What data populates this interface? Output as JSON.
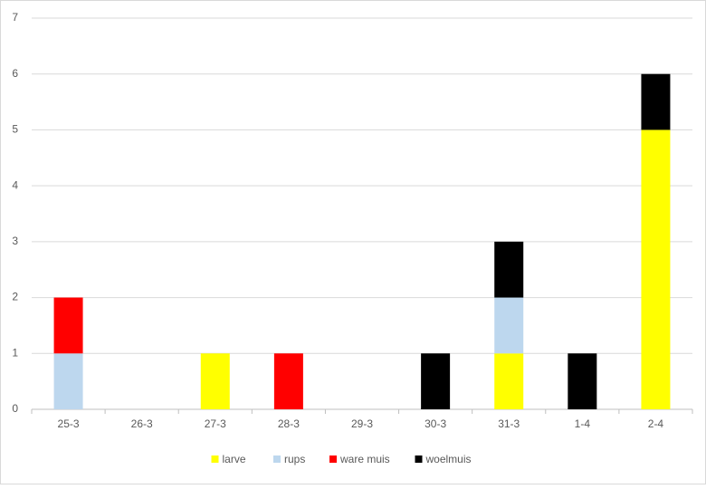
{
  "chart_data": {
    "type": "stacked_bar",
    "categories": [
      "25-3",
      "26-3",
      "27-3",
      "28-3",
      "29-3",
      "30-3",
      "31-3",
      "1-4",
      "2-4"
    ],
    "series": [
      {
        "name": "larve",
        "color": "#ffff00",
        "values": [
          0,
          0,
          1,
          0,
          0,
          0,
          1,
          0,
          5
        ]
      },
      {
        "name": "rups",
        "color": "#bdd7ee",
        "values": [
          1,
          0,
          0,
          0,
          0,
          0,
          1,
          0,
          0
        ]
      },
      {
        "name": "ware muis",
        "color": "#ff0000",
        "values": [
          1,
          0,
          0,
          1,
          0,
          0,
          0,
          0,
          0
        ]
      },
      {
        "name": "woelmuis",
        "color": "#000000",
        "values": [
          0,
          0,
          0,
          0,
          0,
          1,
          1,
          1,
          1
        ]
      }
    ],
    "ylim": [
      0,
      7
    ],
    "yticks": [
      0,
      1,
      2,
      3,
      4,
      5,
      6,
      7
    ],
    "grid": true,
    "legend": "bottom"
  }
}
